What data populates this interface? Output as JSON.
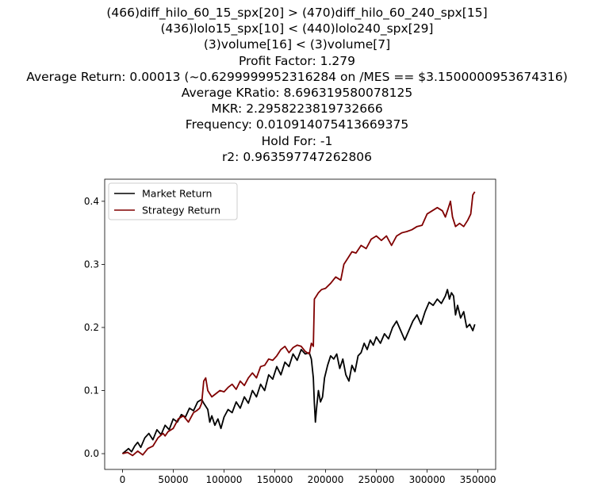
{
  "title_lines": [
    "(466)diff_hilo_60_15_spx[20] > (470)diff_hilo_60_240_spx[15]",
    "(436)lolo15_spx[10] < (440)lolo240_spx[29]",
    "(3)volume[16] < (3)volume[7]",
    "Profit Factor: 1.279",
    "Average Return: 0.00013 (~0.6299999952316284 on /MES == $3.1500000953674316)",
    "Average KRatio: 8.696319580078125",
    "MKR: 2.2958223819732666",
    "Frequency: 0.010914075413669375",
    "Hold For: -1",
    "r2: 0.963597747262806"
  ],
  "chart_data": {
    "type": "line",
    "title": "(466)diff_hilo_60_15_spx[20] > (470)diff_hilo_60_240_spx[15]\n(436)lolo15_spx[10] < (440)lolo240_spx[29]\n(3)volume[16] < (3)volume[7]\nProfit Factor: 1.279\nAverage Return: 0.00013 (~0.6299999952316284 on /MES == $3.1500000953674316)\nAverage KRatio: 8.696319580078125\nMKR: 2.2958223819732666\nFrequency: 0.010914075413669375\nHold For: -1\nr2: 0.963597747262806",
    "xlim": [
      -17500,
      367500
    ],
    "ylim": [
      -0.025,
      0.435
    ],
    "xticks": [
      0,
      50000,
      100000,
      150000,
      200000,
      250000,
      300000,
      350000
    ],
    "xtick_labels": [
      "0",
      "50000",
      "100000",
      "150000",
      "200000",
      "250000",
      "300000",
      "350000"
    ],
    "yticks": [
      0.0,
      0.1,
      0.2,
      0.3,
      0.4
    ],
    "ytick_labels": [
      "0.0",
      "0.1",
      "0.2",
      "0.3",
      "0.4"
    ],
    "grid": false,
    "legend_position": "upper-left",
    "series": [
      {
        "name": "Market Return",
        "color": "#000000",
        "x": [
          0,
          3000,
          6000,
          9000,
          12000,
          15000,
          18000,
          22000,
          26000,
          30000,
          34000,
          38000,
          42000,
          46000,
          50000,
          54000,
          58000,
          62000,
          66000,
          70000,
          74000,
          78000,
          80000,
          82000,
          84000,
          86000,
          88000,
          91000,
          94000,
          97000,
          100000,
          104000,
          108000,
          112000,
          116000,
          120000,
          124000,
          128000,
          132000,
          136000,
          140000,
          144000,
          148000,
          152000,
          156000,
          160000,
          164000,
          168000,
          172000,
          176000,
          180000,
          184000,
          186000,
          188000,
          189000,
          190000,
          191000,
          193000,
          195000,
          197000,
          199000,
          202000,
          205000,
          208000,
          211000,
          214000,
          217000,
          220000,
          223000,
          226000,
          229000,
          232000,
          235000,
          238000,
          241000,
          244000,
          247000,
          250000,
          254000,
          258000,
          262000,
          266000,
          270000,
          274000,
          278000,
          282000,
          286000,
          290000,
          294000,
          298000,
          302000,
          306000,
          310000,
          314000,
          318000,
          320000,
          322000,
          324000,
          326000,
          328000,
          330000,
          333000,
          336000,
          339000,
          342000,
          345000,
          347000
        ],
        "y": [
          0.0,
          0.004,
          0.008,
          0.003,
          0.012,
          0.018,
          0.01,
          0.025,
          0.032,
          0.022,
          0.038,
          0.03,
          0.045,
          0.038,
          0.055,
          0.05,
          0.062,
          0.058,
          0.072,
          0.068,
          0.082,
          0.086,
          0.08,
          0.075,
          0.07,
          0.05,
          0.06,
          0.045,
          0.055,
          0.04,
          0.058,
          0.07,
          0.065,
          0.082,
          0.072,
          0.09,
          0.08,
          0.1,
          0.09,
          0.11,
          0.1,
          0.125,
          0.118,
          0.138,
          0.125,
          0.145,
          0.138,
          0.158,
          0.148,
          0.165,
          0.158,
          0.16,
          0.15,
          0.12,
          0.08,
          0.05,
          0.07,
          0.1,
          0.082,
          0.09,
          0.12,
          0.14,
          0.155,
          0.15,
          0.158,
          0.135,
          0.15,
          0.125,
          0.115,
          0.14,
          0.13,
          0.155,
          0.16,
          0.175,
          0.165,
          0.18,
          0.172,
          0.185,
          0.175,
          0.19,
          0.182,
          0.2,
          0.21,
          0.195,
          0.18,
          0.195,
          0.21,
          0.22,
          0.205,
          0.225,
          0.24,
          0.235,
          0.245,
          0.238,
          0.25,
          0.26,
          0.245,
          0.255,
          0.25,
          0.22,
          0.235,
          0.215,
          0.225,
          0.2,
          0.205,
          0.195,
          0.205
        ]
      },
      {
        "name": "Strategy Return",
        "color": "#800000",
        "x": [
          0,
          5000,
          10000,
          15000,
          20000,
          25000,
          30000,
          35000,
          40000,
          42000,
          45000,
          50000,
          55000,
          60000,
          65000,
          70000,
          73000,
          76000,
          78000,
          80000,
          82000,
          84000,
          86000,
          88000,
          92000,
          96000,
          100000,
          104000,
          108000,
          112000,
          116000,
          120000,
          124000,
          128000,
          132000,
          136000,
          140000,
          144000,
          148000,
          152000,
          156000,
          160000,
          164000,
          168000,
          172000,
          176000,
          180000,
          184000,
          186000,
          188000,
          189000,
          191000,
          193000,
          196000,
          200000,
          205000,
          210000,
          215000,
          218000,
          222000,
          226000,
          230000,
          235000,
          240000,
          245000,
          250000,
          255000,
          260000,
          265000,
          270000,
          275000,
          280000,
          285000,
          290000,
          295000,
          300000,
          305000,
          310000,
          315000,
          318000,
          321000,
          323000,
          325000,
          328000,
          332000,
          336000,
          340000,
          343000,
          345000,
          347000
        ],
        "y": [
          0.0,
          0.002,
          -0.003,
          0.004,
          -0.002,
          0.008,
          0.012,
          0.025,
          0.032,
          0.028,
          0.035,
          0.04,
          0.055,
          0.06,
          0.05,
          0.065,
          0.068,
          0.072,
          0.08,
          0.115,
          0.12,
          0.1,
          0.095,
          0.09,
          0.095,
          0.1,
          0.098,
          0.105,
          0.11,
          0.102,
          0.115,
          0.108,
          0.12,
          0.128,
          0.12,
          0.138,
          0.14,
          0.15,
          0.148,
          0.155,
          0.165,
          0.17,
          0.16,
          0.168,
          0.172,
          0.17,
          0.162,
          0.158,
          0.175,
          0.17,
          0.245,
          0.25,
          0.255,
          0.26,
          0.262,
          0.27,
          0.28,
          0.275,
          0.3,
          0.31,
          0.32,
          0.318,
          0.33,
          0.325,
          0.34,
          0.345,
          0.338,
          0.345,
          0.33,
          0.345,
          0.35,
          0.352,
          0.355,
          0.36,
          0.362,
          0.38,
          0.385,
          0.39,
          0.385,
          0.375,
          0.39,
          0.4,
          0.375,
          0.36,
          0.365,
          0.36,
          0.37,
          0.38,
          0.41,
          0.415
        ]
      }
    ]
  }
}
